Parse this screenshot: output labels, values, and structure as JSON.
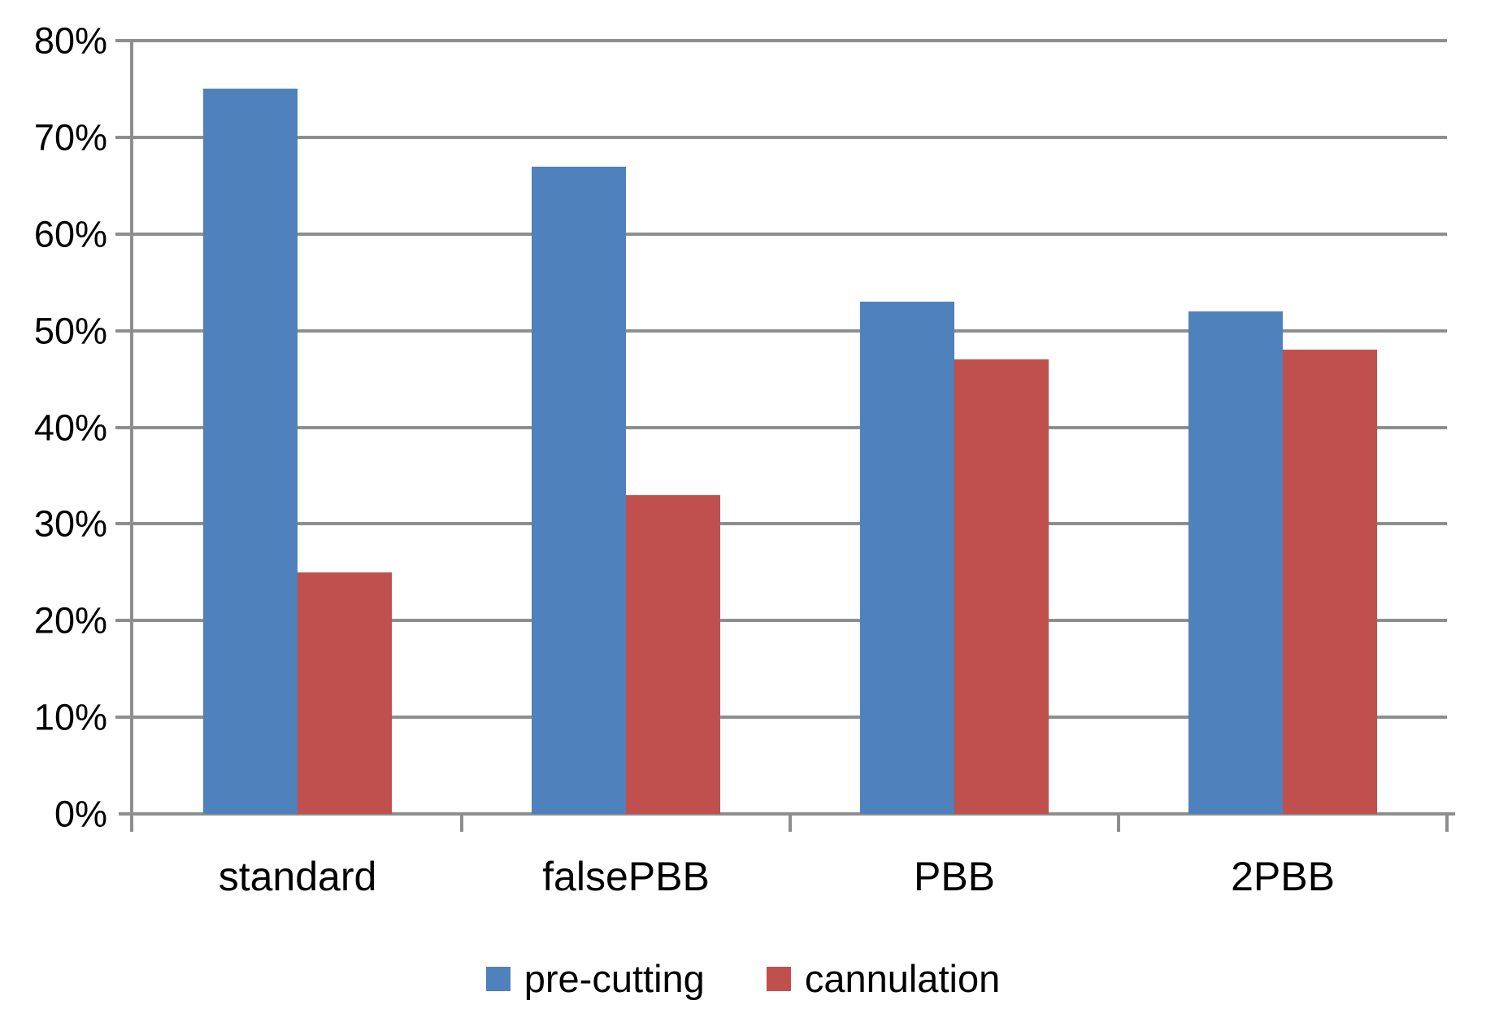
{
  "chart_data": {
    "type": "bar",
    "title": "",
    "xlabel": "",
    "ylabel": "",
    "categories": [
      "standard",
      "falsePBB",
      "PBB",
      "2PBB"
    ],
    "series": [
      {
        "name": "pre-cutting",
        "color": "#4f81bd",
        "values": [
          75,
          67,
          53,
          52
        ]
      },
      {
        "name": "cannulation",
        "color": "#c0504d",
        "values": [
          25,
          33,
          47,
          48
        ]
      }
    ],
    "ylim": [
      0,
      80
    ],
    "y_tick_step": 10,
    "y_tick_labels": [
      "0%",
      "10%",
      "20%",
      "30%",
      "40%",
      "50%",
      "60%",
      "70%",
      "80%"
    ],
    "grid": true,
    "gridlines": "horizontal",
    "legend_position": "bottom-center"
  },
  "colors": {
    "axis": "#8e8e8e",
    "gridline": "#8e8e8e",
    "text": "#000000",
    "background": "#ffffff"
  }
}
